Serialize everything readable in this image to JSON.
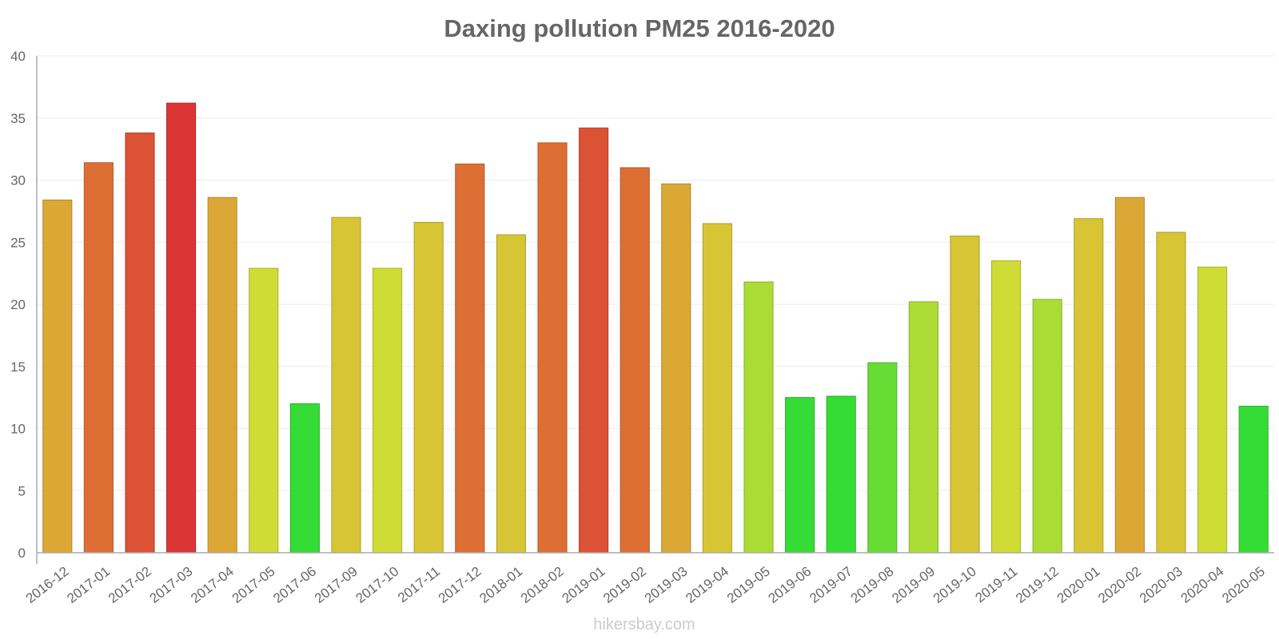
{
  "chart_data": {
    "type": "bar",
    "title": "Daxing pollution PM25 2016-2020",
    "xlabel": "",
    "ylabel": "",
    "ylim": [
      0,
      40
    ],
    "yticks": [
      0,
      5,
      10,
      15,
      20,
      25,
      30,
      35,
      40
    ],
    "grid": true,
    "categories": [
      "2016-12",
      "2017-01",
      "2017-02",
      "2017-03",
      "2017-04",
      "2017-05",
      "2017-06",
      "2017-09",
      "2017-10",
      "2017-11",
      "2017-12",
      "2018-01",
      "2018-02",
      "2019-01",
      "2019-02",
      "2019-03",
      "2019-04",
      "2019-05",
      "2019-06",
      "2019-07",
      "2019-08",
      "2019-09",
      "2019-10",
      "2019-11",
      "2019-12",
      "2020-01",
      "2020-02",
      "2020-03",
      "2020-04",
      "2020-05"
    ],
    "values": [
      28.4,
      31.4,
      33.8,
      36.2,
      28.6,
      22.9,
      12.0,
      27.0,
      22.9,
      26.6,
      31.3,
      25.6,
      33.0,
      34.2,
      31.0,
      29.7,
      26.5,
      21.8,
      12.5,
      12.6,
      15.3,
      20.2,
      25.5,
      23.5,
      20.4,
      26.9,
      28.6,
      25.8,
      23.0,
      11.8
    ],
    "colors": [
      "#dca835",
      "#dd6f35",
      "#dc5234",
      "#dc3535",
      "#dca835",
      "#cfdc35",
      "#35dc35",
      "#d8c535",
      "#cfdc35",
      "#d8c535",
      "#dd6f35",
      "#d8c535",
      "#dd6f35",
      "#dc5234",
      "#dd6f35",
      "#dca835",
      "#d8c535",
      "#aadc35",
      "#35dc35",
      "#35dc35",
      "#66dc35",
      "#aadc35",
      "#d8c535",
      "#cfdc35",
      "#aadc35",
      "#d8c535",
      "#dca835",
      "#d8c535",
      "#cfdc35",
      "#35dc35"
    ]
  },
  "watermark": "hikersbay.com"
}
